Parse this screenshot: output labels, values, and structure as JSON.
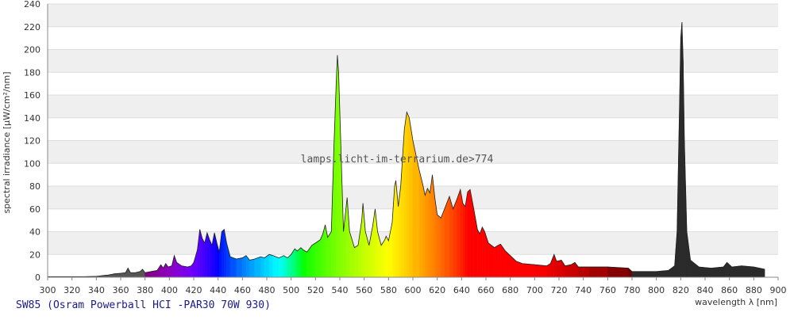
{
  "chart_data": {
    "type": "spectrum",
    "title": "SW85 (Osram Powerball HCI -PAR30 70W 930)",
    "x_label": "wavelength λ [nm]",
    "y_label": "spectral irradiance [µW/cm²/nm]",
    "annotation": "lamps.licht-im-terrarium.de>774",
    "xlim": [
      300,
      900
    ],
    "ylim": [
      0,
      240
    ],
    "xticks": [
      300,
      320,
      340,
      360,
      380,
      400,
      420,
      440,
      460,
      480,
      500,
      520,
      540,
      560,
      580,
      600,
      620,
      640,
      660,
      680,
      700,
      720,
      740,
      760,
      780,
      800,
      820,
      840,
      860,
      880,
      900
    ],
    "yticks": [
      0,
      20,
      40,
      60,
      80,
      100,
      120,
      140,
      160,
      180,
      200,
      220,
      240
    ],
    "grid": true,
    "x": [
      300,
      310,
      320,
      330,
      340,
      350,
      355,
      360,
      364,
      366,
      368,
      372,
      376,
      378,
      380,
      385,
      390,
      393,
      395,
      397,
      399,
      402,
      404,
      406,
      410,
      415,
      418,
      420,
      423,
      425,
      427,
      429,
      431,
      433,
      435,
      437,
      439,
      441,
      443,
      445,
      447,
      450,
      455,
      460,
      463,
      466,
      470,
      475,
      478,
      482,
      485,
      490,
      494,
      497,
      500,
      503,
      505,
      508,
      510,
      513,
      517,
      520,
      524,
      526,
      528,
      530,
      533,
      535,
      537,
      538,
      539,
      541,
      543,
      545,
      546,
      548,
      552,
      555,
      558,
      559,
      561,
      564,
      567,
      569,
      571,
      574,
      577,
      578,
      580,
      583,
      585,
      586,
      588,
      590,
      593,
      595,
      597,
      600,
      605,
      608,
      610,
      612,
      614,
      616,
      618,
      620,
      623,
      626,
      630,
      633,
      636,
      639,
      641,
      643,
      645,
      647,
      650,
      653,
      655,
      657,
      659,
      662,
      667,
      670,
      672,
      676,
      680,
      685,
      690,
      700,
      710,
      713,
      716,
      718,
      722,
      725,
      730,
      733,
      736,
      745,
      760,
      777,
      780,
      790,
      800,
      810,
      815,
      817,
      819,
      820,
      821,
      822,
      823,
      825,
      828,
      835,
      845,
      855,
      858,
      862,
      870,
      880,
      889
    ],
    "values": [
      0.5,
      0.5,
      0.5,
      0.5,
      0.8,
      2,
      3,
      3.5,
      4,
      8,
      4,
      4,
      5,
      7,
      4,
      5,
      6,
      11,
      8,
      12,
      9,
      10,
      19,
      13,
      10,
      9,
      10,
      13,
      24,
      42,
      34,
      30,
      39,
      33,
      28,
      39,
      30,
      22,
      40,
      42,
      30,
      18,
      16,
      17,
      19,
      15,
      16,
      18,
      17,
      20,
      19,
      17,
      19,
      17,
      20,
      25,
      23,
      26,
      24,
      22,
      28,
      30,
      33,
      38,
      46,
      35,
      40,
      110,
      170,
      195,
      180,
      110,
      40,
      60,
      70,
      40,
      26,
      28,
      50,
      65,
      40,
      28,
      45,
      60,
      40,
      28,
      33,
      36,
      32,
      48,
      80,
      85,
      62,
      80,
      130,
      145,
      140,
      120,
      95,
      82,
      72,
      78,
      74,
      90,
      70,
      55,
      52,
      60,
      71,
      60,
      68,
      77,
      65,
      62,
      75,
      77,
      60,
      42,
      38,
      44,
      40,
      30,
      26,
      28,
      29,
      23,
      19,
      14,
      12,
      11,
      10,
      12,
      20,
      14,
      15,
      10,
      11,
      13,
      9,
      9,
      9,
      8,
      5,
      5,
      5,
      6,
      10,
      40,
      150,
      210,
      224,
      190,
      120,
      40,
      15,
      9,
      8,
      9,
      13,
      9,
      10,
      9,
      7
    ]
  }
}
